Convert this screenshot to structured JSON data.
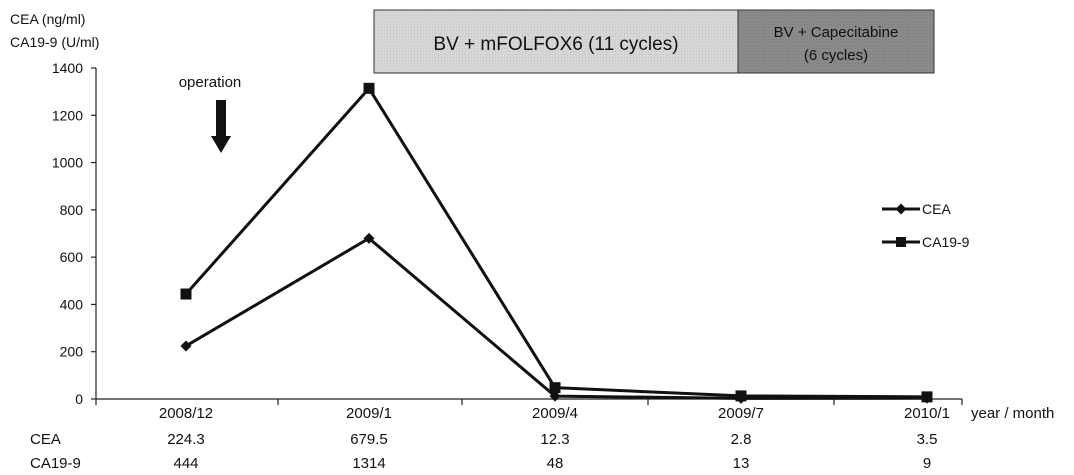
{
  "chart_data": {
    "type": "line",
    "ylabel_lines": [
      "CEA (ng/ml)",
      "CA19-9 (U/ml)"
    ],
    "xlabel": "year / month",
    "categories": [
      "2008/12",
      "2009/1",
      "2009/4",
      "2009/7",
      "2010/1"
    ],
    "ylim": [
      0,
      1400
    ],
    "yticks": [
      "0",
      "200",
      "400",
      "600",
      "800",
      "1000",
      "1200",
      "1400"
    ],
    "series": [
      {
        "name": "CEA",
        "marker": "diamond",
        "values": [
          224.3,
          679.5,
          12.3,
          2.8,
          3.5
        ]
      },
      {
        "name": "CA19-9",
        "marker": "square",
        "values": [
          444,
          1314,
          48,
          13,
          9
        ]
      }
    ],
    "table_rows": [
      {
        "label": "CEA",
        "cells": [
          "224.3",
          "679.5",
          "12.3",
          "2.8",
          "3.5"
        ]
      },
      {
        "label": "CA19-9",
        "cells": [
          "444",
          "1314",
          "48",
          "13",
          "9"
        ]
      }
    ],
    "treatments": [
      {
        "lines": [
          "BV + mFOLFOX6 (11 cycles)"
        ],
        "color": "#d9d9d9"
      },
      {
        "lines": [
          "BV + Capecitabine",
          "(6 cycles)"
        ],
        "color": "#8c8c8c"
      }
    ],
    "annotation": {
      "text": "operation",
      "category": "2008/12"
    },
    "legend_position": "right"
  }
}
